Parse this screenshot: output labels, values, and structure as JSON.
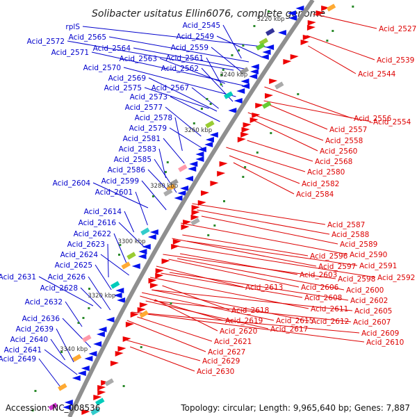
{
  "title": "Solibacter usitatus Ellin6076, complete genome",
  "footer": {
    "accession": "Accession: NC_008536",
    "topology": "Topology: circular; Length: 9,965,640 bp; Genes: 7,887"
  },
  "colors": {
    "backbone": "#888888",
    "left_labels": "#0000cc",
    "right_labels": "#dd0000"
  },
  "kbp_ticks": [
    "3220 kbp",
    "3240 kbp",
    "3260 kbp",
    "3280 kbp",
    "3300 kbp",
    "3320 kbp",
    "3340 kbp"
  ],
  "left_labels": [
    "rplS",
    "Acid_2565",
    "Acid_2572",
    "Acid_2571",
    "Acid_2564",
    "Acid_2563",
    "Acid_2570",
    "Acid_2569",
    "Acid_2575",
    "Acid_2573",
    "Acid_2577",
    "Acid_2578",
    "Acid_2579",
    "Acid_2581",
    "Acid_2583",
    "Acid_2585",
    "Acid_2586",
    "Acid_2604",
    "Acid_2599",
    "Acid_2601",
    "Acid_2614",
    "Acid_2616",
    "Acid_2622",
    "Acid_2623",
    "Acid_2624",
    "Acid_2625",
    "Acid_2631",
    "Acid_2626",
    "Acid_2628",
    "Acid_2632",
    "Acid_2636",
    "Acid_2639",
    "Acid_2640",
    "Acid_2641",
    "Acid_2649",
    "Acid_2545",
    "Acid_2549",
    "Acid_2559",
    "Acid_2561",
    "Acid_2562",
    "Acid_2567"
  ],
  "right_labels": [
    "Acid_2527",
    "Acid_2539",
    "Acid_2544",
    "Acid_2556",
    "Acid_2554",
    "Acid_2557",
    "Acid_2558",
    "Acid_2560",
    "Acid_2568",
    "Acid_2580",
    "Acid_2582",
    "Acid_2584",
    "Acid_2587",
    "Acid_2588",
    "Acid_2589",
    "Acid_2590",
    "Acid_2596",
    "Acid_2591",
    "Acid_2597",
    "Acid_2592",
    "Acid_2603",
    "Acid_2598",
    "Acid_2606",
    "Acid_2600",
    "Acid_2613",
    "Acid_2608",
    "Acid_2602",
    "Acid_2611",
    "Acid_2605",
    "Acid_2618",
    "Acid_2615",
    "Acid_2612",
    "Acid_2607",
    "Acid_2619",
    "Acid_2617",
    "Acid_2620",
    "Acid_2609",
    "Acid_2621",
    "Acid_2610",
    "Acid_2627",
    "Acid_2629",
    "Acid_2630"
  ]
}
